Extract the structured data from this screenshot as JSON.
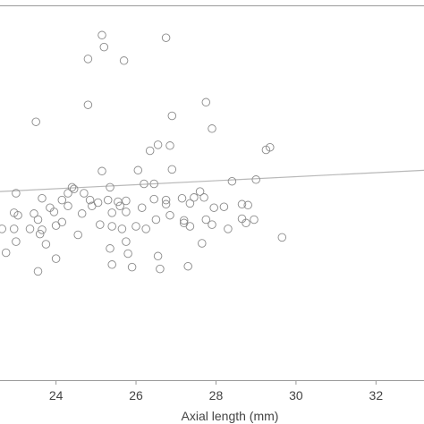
{
  "chart_data": {
    "type": "scatter",
    "title": "",
    "xlabel": "Axial length (mm)",
    "ylabel": "",
    "xlim": [
      22.6,
      33.2
    ],
    "ylim": [
      0,
      44
    ],
    "x_ticks": [
      24,
      26,
      28,
      30,
      32
    ],
    "x_tick_labels": [
      "24",
      "26",
      "28",
      "30",
      "32"
    ],
    "grid": false,
    "colors": {
      "axis": "#9a9a9a",
      "point_stroke": "#8a8a8a",
      "trend": "#b8b8b8",
      "text": "#444444"
    },
    "trend_line": {
      "x": [
        22.6,
        33.2
      ],
      "y": [
        22.2,
        24.7
      ]
    },
    "points": [
      [
        25.15,
        40.6
      ],
      [
        26.75,
        40.3
      ],
      [
        25.2,
        39.2
      ],
      [
        24.8,
        37.8
      ],
      [
        25.7,
        37.6
      ],
      [
        24.8,
        32.4
      ],
      [
        27.75,
        32.7
      ],
      [
        26.9,
        31.1
      ],
      [
        23.5,
        30.4
      ],
      [
        27.9,
        29.6
      ],
      [
        26.55,
        27.7
      ],
      [
        26.85,
        27.6
      ],
      [
        29.35,
        27.4
      ],
      [
        29.25,
        27.1
      ],
      [
        26.35,
        27.0
      ],
      [
        25.15,
        24.6
      ],
      [
        26.9,
        24.8
      ],
      [
        26.05,
        24.7
      ],
      [
        28.4,
        23.4
      ],
      [
        29.0,
        23.6
      ],
      [
        26.2,
        23.1
      ],
      [
        26.45,
        23.1
      ],
      [
        24.4,
        22.7
      ],
      [
        25.35,
        22.7
      ],
      [
        24.45,
        22.5
      ],
      [
        23.0,
        22.0
      ],
      [
        24.3,
        22.0
      ],
      [
        24.7,
        22.0
      ],
      [
        27.6,
        22.2
      ],
      [
        23.65,
        21.4
      ],
      [
        24.15,
        21.2
      ],
      [
        24.85,
        21.2
      ],
      [
        25.05,
        20.9
      ],
      [
        25.3,
        21.2
      ],
      [
        25.55,
        21.0
      ],
      [
        25.75,
        21.1
      ],
      [
        26.45,
        21.3
      ],
      [
        26.75,
        21.2
      ],
      [
        27.15,
        21.4
      ],
      [
        27.45,
        21.5
      ],
      [
        27.7,
        21.5
      ],
      [
        24.3,
        20.5
      ],
      [
        24.9,
        20.5
      ],
      [
        25.6,
        20.5
      ],
      [
        23.85,
        20.3
      ],
      [
        26.15,
        20.3
      ],
      [
        26.75,
        20.7
      ],
      [
        27.35,
        20.8
      ],
      [
        27.95,
        20.3
      ],
      [
        28.2,
        20.4
      ],
      [
        28.65,
        20.7
      ],
      [
        28.8,
        20.6
      ],
      [
        23.95,
        19.8
      ],
      [
        24.65,
        19.6
      ],
      [
        25.4,
        19.7
      ],
      [
        25.75,
        19.8
      ],
      [
        26.85,
        19.4
      ],
      [
        28.65,
        19.0
      ],
      [
        22.95,
        19.7
      ],
      [
        23.45,
        19.6
      ],
      [
        23.05,
        19.4
      ],
      [
        23.55,
        18.9
      ],
      [
        26.5,
        18.9
      ],
      [
        27.2,
        18.8
      ],
      [
        28.95,
        18.9
      ],
      [
        24.15,
        18.6
      ],
      [
        25.4,
        18.1
      ],
      [
        26.0,
        18.1
      ],
      [
        27.2,
        18.5
      ],
      [
        27.75,
        18.9
      ],
      [
        28.75,
        18.5
      ],
      [
        24.0,
        18.2
      ],
      [
        25.1,
        18.3
      ],
      [
        27.35,
        18.1
      ],
      [
        27.9,
        18.3
      ],
      [
        22.65,
        17.8
      ],
      [
        22.95,
        17.8
      ],
      [
        23.35,
        17.8
      ],
      [
        23.65,
        17.7
      ],
      [
        25.65,
        17.8
      ],
      [
        26.25,
        17.8
      ],
      [
        28.3,
        17.8
      ],
      [
        24.55,
        17.1
      ],
      [
        23.6,
        17.2
      ],
      [
        23.0,
        16.3
      ],
      [
        23.75,
        16.0
      ],
      [
        25.75,
        16.3
      ],
      [
        27.65,
        16.1
      ],
      [
        29.65,
        16.8
      ],
      [
        22.75,
        15.0
      ],
      [
        25.35,
        15.5
      ],
      [
        25.8,
        14.9
      ],
      [
        26.55,
        14.6
      ],
      [
        24.0,
        14.3
      ],
      [
        25.4,
        13.6
      ],
      [
        25.9,
        13.3
      ],
      [
        26.6,
        13.1
      ],
      [
        27.3,
        13.4
      ],
      [
        23.55,
        12.8
      ]
    ]
  }
}
